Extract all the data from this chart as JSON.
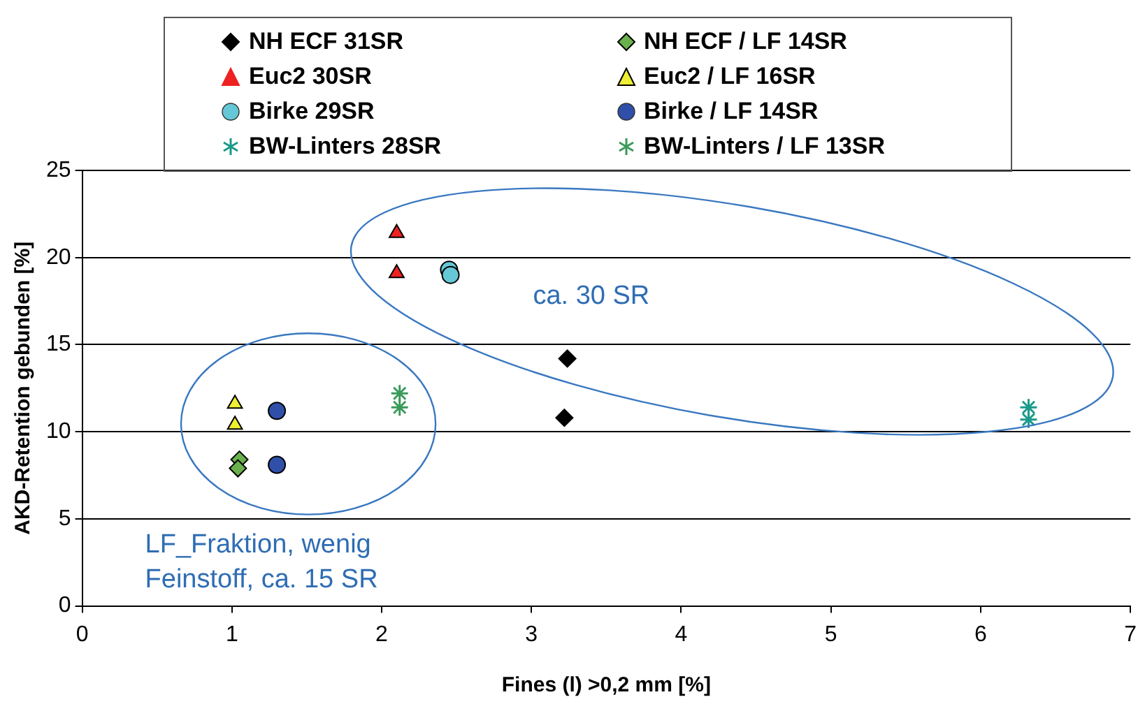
{
  "chart_data": {
    "type": "scatter",
    "xlabel": "Fines (l) >0,2 mm [%]",
    "ylabel": "AKD-Retention gebunden [%]",
    "xlim": [
      0,
      7
    ],
    "xticks": [
      0,
      1,
      2,
      3,
      4,
      5,
      6,
      7
    ],
    "ylim": [
      0,
      25
    ],
    "yticks": [
      0,
      5,
      10,
      15,
      20,
      25
    ],
    "grid": "y",
    "legend": "top",
    "series": [
      {
        "name": "NH ECF 31SR",
        "color": "#000000",
        "marker": "diamond",
        "x": [
          3.24,
          3.22
        ],
        "values": [
          14.2,
          10.8
        ]
      },
      {
        "name": "NH ECF / LF 14SR",
        "color": "#6ab04c",
        "marker": "diamond",
        "x": [
          1.05,
          1.04
        ],
        "values": [
          8.4,
          7.9
        ]
      },
      {
        "name": "Euc2 30SR",
        "color": "#ee2222",
        "marker": "triangle",
        "x": [
          2.1,
          2.1
        ],
        "values": [
          21.4,
          19.1
        ]
      },
      {
        "name": "Euc2 / LF 16SR",
        "color": "#eeee33",
        "marker": "triangle",
        "x": [
          1.02,
          1.02
        ],
        "values": [
          11.6,
          10.4
        ]
      },
      {
        "name": "Birke 29SR",
        "color": "#66c8d6",
        "marker": "circle",
        "x": [
          2.45,
          2.46
        ],
        "values": [
          19.3,
          19.0
        ]
      },
      {
        "name": "Birke / LF 14SR",
        "color": "#2f4fa8",
        "marker": "circle",
        "x": [
          1.3,
          1.3
        ],
        "values": [
          11.2,
          8.1
        ]
      },
      {
        "name": "BW-Linters 28SR",
        "color": "#1a9a8a",
        "marker": "cross",
        "x": [
          6.32,
          6.32
        ],
        "values": [
          11.4,
          10.7
        ]
      },
      {
        "name": "BW-Linters / LF 13SR",
        "color": "#3a9a5a",
        "marker": "cross",
        "x": [
          2.12,
          2.12
        ],
        "values": [
          12.2,
          11.4
        ]
      }
    ],
    "annotations": [
      "ca. 30 SR",
      "LF_Fraktion, wenig\nFeinstoff, ca. 15 SR"
    ]
  }
}
